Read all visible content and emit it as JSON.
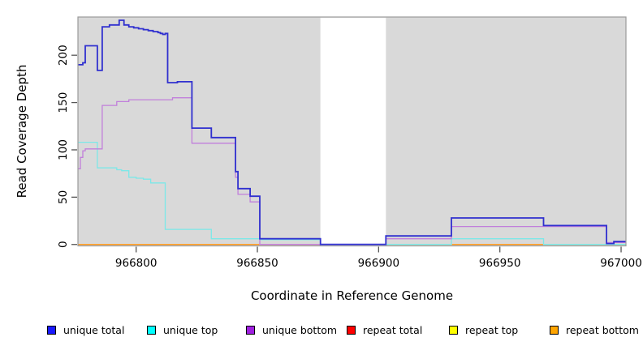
{
  "chart_data": {
    "type": "line",
    "subtype": "step-coverage-plot",
    "title": "",
    "xlabel": "Coordinate in Reference Genome",
    "ylabel": "Read Coverage Depth",
    "x_range": [
      966776,
      967002
    ],
    "y_range": [
      -1.5,
      240.4
    ],
    "x_ticks": [
      966800,
      966850,
      966900,
      966950,
      967000
    ],
    "y_ticks": [
      0,
      50,
      100,
      150,
      200
    ],
    "grid": "off",
    "plot_bg_color": "#d9d9d9",
    "border_color": "#9a9a9a",
    "gap_region": {
      "from": 966876,
      "to": 966903,
      "color": "#ffffff"
    },
    "series": [
      {
        "name": "repeat total",
        "color": "#e05050",
        "width": 1.4,
        "points": [
          [
            966776,
            0
          ],
          [
            967002,
            0
          ]
        ]
      },
      {
        "name": "repeat top",
        "color": "#f0f000",
        "width": 1.4,
        "points": [
          [
            966776,
            0
          ],
          [
            967002,
            0
          ]
        ]
      },
      {
        "name": "repeat bottom",
        "color": "#ff9d23",
        "width": 1.5,
        "points": [
          [
            966776,
            0
          ],
          [
            967002,
            0
          ]
        ]
      },
      {
        "name": "unique top",
        "color": "#7ce8e8",
        "width": 1.3,
        "points": [
          [
            966776,
            108
          ],
          [
            966784,
            81
          ],
          [
            966792,
            79
          ],
          [
            966794,
            78
          ],
          [
            966797,
            71
          ],
          [
            966800,
            70
          ],
          [
            966803,
            69
          ],
          [
            966806,
            65
          ],
          [
            966812,
            16
          ],
          [
            966831,
            6
          ],
          [
            966851,
            5
          ],
          [
            966876,
            0
          ],
          [
            966930,
            6
          ],
          [
            966968,
            0
          ],
          [
            967002,
            0
          ]
        ]
      },
      {
        "name": "unique bottom",
        "color": "#c17fdb",
        "width": 1.3,
        "points": [
          [
            966776,
            80
          ],
          [
            966777,
            92
          ],
          [
            966778,
            99
          ],
          [
            966779,
            101
          ],
          [
            966786,
            147
          ],
          [
            966792,
            151
          ],
          [
            966797,
            153
          ],
          [
            966815,
            155
          ],
          [
            966823,
            107
          ],
          [
            966841,
            71
          ],
          [
            966842,
            53
          ],
          [
            966847,
            45
          ],
          [
            966851,
            0
          ],
          [
            966903,
            6
          ],
          [
            966930,
            19
          ],
          [
            966994,
            2
          ],
          [
            967002,
            2
          ]
        ]
      },
      {
        "name": "unique total",
        "color": "#3030cf",
        "width": 1.8,
        "points": [
          [
            966776,
            190
          ],
          [
            966778,
            192
          ],
          [
            966779,
            210
          ],
          [
            966784,
            184
          ],
          [
            966786,
            230
          ],
          [
            966789,
            232
          ],
          [
            966793,
            237
          ],
          [
            966795,
            232
          ],
          [
            966797,
            230
          ],
          [
            966799,
            229
          ],
          [
            966801,
            228
          ],
          [
            966803,
            227
          ],
          [
            966805,
            226
          ],
          [
            966807,
            225
          ],
          [
            966809,
            224
          ],
          [
            966810,
            223
          ],
          [
            966811,
            222
          ],
          [
            966812,
            223
          ],
          [
            966813,
            171
          ],
          [
            966817,
            172
          ],
          [
            966823,
            123
          ],
          [
            966831,
            113
          ],
          [
            966841,
            77
          ],
          [
            966842,
            59
          ],
          [
            966847,
            51
          ],
          [
            966851,
            6
          ],
          [
            966876,
            0
          ],
          [
            966903,
            9
          ],
          [
            966930,
            28
          ],
          [
            966968,
            20
          ],
          [
            966994,
            1
          ],
          [
            966997,
            3
          ],
          [
            967002,
            3
          ]
        ]
      }
    ],
    "legend": [
      {
        "label": "unique total",
        "color": "#1919ff"
      },
      {
        "label": "unique top",
        "color": "#00ffff"
      },
      {
        "label": "unique bottom",
        "color": "#a020e0"
      },
      {
        "label": "repeat total",
        "color": "#ff0000"
      },
      {
        "label": "repeat top",
        "color": "#ffff00"
      },
      {
        "label": "repeat bottom",
        "color": "#ffa500"
      }
    ],
    "legend_position": "bottom"
  }
}
